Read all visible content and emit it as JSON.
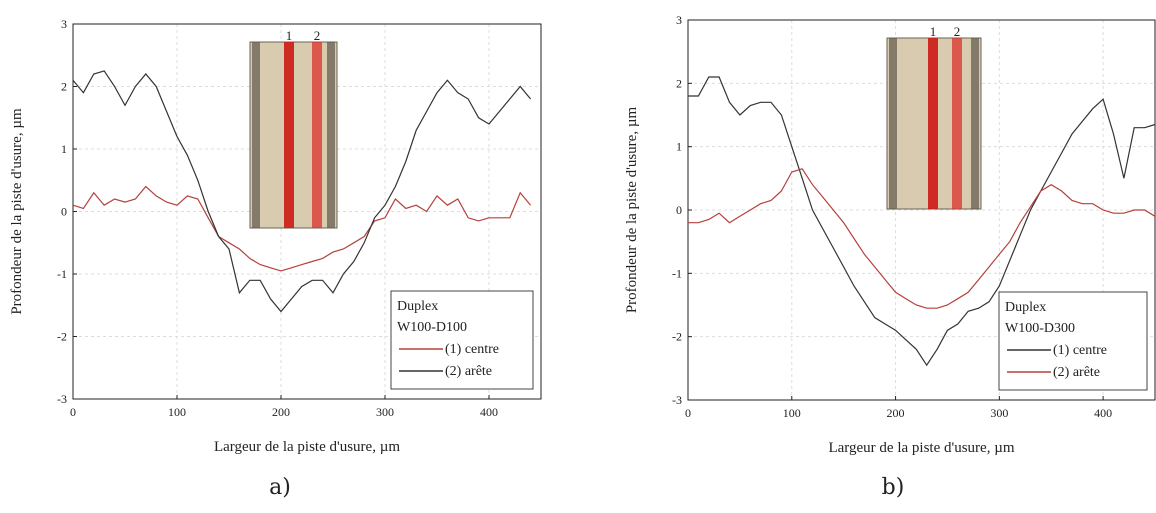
{
  "chart_data": [
    {
      "type": "line",
      "panel_label": "a)",
      "x_label": "Largeur de la piste d'usure, µm",
      "y_label": "Profondeur de la piste d'usure, µm",
      "legend_title": "Duplex",
      "legend_subtitle": "W100-D100",
      "legend_position": "lower right",
      "inset_labels": [
        "1",
        "2"
      ],
      "grid": true,
      "xlim": [
        0,
        450
      ],
      "xticks": [
        0,
        100,
        200,
        300,
        400
      ],
      "ylim": [
        -3,
        3
      ],
      "yticks": [
        -3,
        -2,
        -1,
        0,
        1,
        2,
        3
      ],
      "x": [
        0,
        10,
        20,
        30,
        40,
        50,
        60,
        70,
        80,
        90,
        100,
        110,
        120,
        130,
        140,
        150,
        160,
        170,
        180,
        190,
        200,
        210,
        220,
        230,
        240,
        250,
        260,
        270,
        280,
        290,
        300,
        310,
        320,
        330,
        340,
        350,
        360,
        370,
        380,
        390,
        400,
        410,
        420,
        430,
        440
      ],
      "series": [
        {
          "name": "(1) centre",
          "color": "#b5403c",
          "values": [
            0.1,
            0.05,
            0.3,
            0.1,
            0.2,
            0.15,
            0.2,
            0.4,
            0.25,
            0.15,
            0.1,
            0.25,
            0.2,
            -0.1,
            -0.4,
            -0.5,
            -0.6,
            -0.75,
            -0.85,
            -0.9,
            -0.95,
            -0.9,
            -0.85,
            -0.8,
            -0.75,
            -0.65,
            -0.6,
            -0.5,
            -0.4,
            -0.15,
            -0.1,
            0.2,
            0.05,
            0.1,
            0.0,
            0.25,
            0.1,
            0.2,
            -0.1,
            -0.15,
            -0.1,
            -0.1,
            -0.1,
            0.3,
            0.1
          ]
        },
        {
          "name": "(2) arête",
          "color": "#333333",
          "values": [
            2.1,
            1.9,
            2.2,
            2.25,
            2.0,
            1.7,
            2.0,
            2.2,
            2.0,
            1.6,
            1.2,
            0.9,
            0.5,
            0.0,
            -0.4,
            -0.6,
            -1.3,
            -1.1,
            -1.1,
            -1.4,
            -1.6,
            -1.4,
            -1.2,
            -1.1,
            -1.1,
            -1.3,
            -1.0,
            -0.8,
            -0.5,
            -0.1,
            0.1,
            0.4,
            0.8,
            1.3,
            1.6,
            1.9,
            2.1,
            1.9,
            1.8,
            1.5,
            1.4,
            1.6,
            1.8,
            2.0,
            1.8
          ]
        }
      ]
    },
    {
      "type": "line",
      "panel_label": "b)",
      "x_label": "Largeur de la piste d'usure, µm",
      "y_label": "Profondeur de la piste d'usure, µm",
      "legend_title": "Duplex",
      "legend_subtitle": "W100-D300",
      "legend_position": "lower right",
      "inset_labels": [
        "1",
        "2"
      ],
      "grid": true,
      "xlim": [
        0,
        450
      ],
      "xticks": [
        0,
        100,
        200,
        300,
        400
      ],
      "ylim": [
        -3,
        3
      ],
      "yticks": [
        -3,
        -2,
        -1,
        0,
        1,
        2,
        3
      ],
      "x": [
        0,
        10,
        20,
        30,
        40,
        50,
        60,
        70,
        80,
        90,
        100,
        110,
        120,
        130,
        140,
        150,
        160,
        170,
        180,
        190,
        200,
        210,
        220,
        230,
        240,
        250,
        260,
        270,
        280,
        290,
        300,
        310,
        320,
        330,
        340,
        350,
        360,
        370,
        380,
        390,
        400,
        410,
        420,
        430,
        440,
        450
      ],
      "series": [
        {
          "name": "(1) centre",
          "color": "#333333",
          "values": [
            1.8,
            1.8,
            2.1,
            2.1,
            1.7,
            1.5,
            1.65,
            1.7,
            1.7,
            1.5,
            1.0,
            0.5,
            0.0,
            -0.3,
            -0.6,
            -0.9,
            -1.2,
            -1.45,
            -1.7,
            -1.8,
            -1.9,
            -2.05,
            -2.2,
            -2.45,
            -2.2,
            -1.9,
            -1.8,
            -1.6,
            -1.55,
            -1.45,
            -1.2,
            -0.8,
            -0.4,
            0.0,
            0.3,
            0.6,
            0.9,
            1.2,
            1.4,
            1.6,
            1.75,
            1.2,
            0.5,
            1.3,
            1.3,
            1.35
          ]
        },
        {
          "name": "(2) arête",
          "color": "#b5403c",
          "values": [
            -0.2,
            -0.2,
            -0.15,
            -0.05,
            -0.2,
            -0.1,
            0.0,
            0.1,
            0.15,
            0.3,
            0.6,
            0.65,
            0.4,
            0.2,
            0.0,
            -0.2,
            -0.45,
            -0.7,
            -0.9,
            -1.1,
            -1.3,
            -1.4,
            -1.5,
            -1.55,
            -1.55,
            -1.5,
            -1.4,
            -1.3,
            -1.1,
            -0.9,
            -0.7,
            -0.5,
            -0.2,
            0.05,
            0.3,
            0.4,
            0.3,
            0.15,
            0.1,
            0.1,
            0.0,
            -0.05,
            -0.05,
            0.0,
            0.0,
            -0.1
          ]
        }
      ]
    }
  ]
}
